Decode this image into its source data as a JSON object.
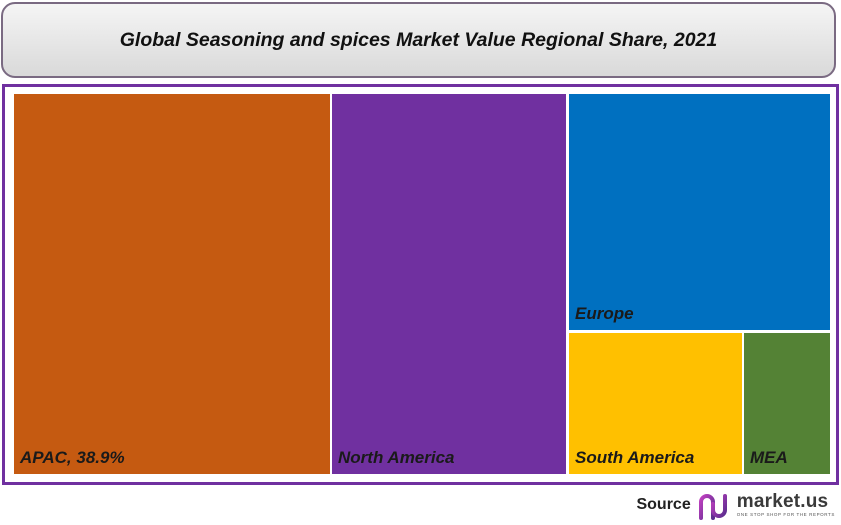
{
  "chart_data": {
    "type": "treemap",
    "title": "Global Seasoning and spices Market Value Regional Share, 2021",
    "tiles": [
      {
        "name": "APAC",
        "value_label": "38.9%",
        "color": "#c55a11"
      },
      {
        "name": "North America",
        "color": "#7030a0"
      },
      {
        "name": "Europe",
        "color": "#0070c0"
      },
      {
        "name": "South America",
        "color": "#ffc000"
      },
      {
        "name": "MEA",
        "color": "#548235"
      }
    ],
    "border_color": "#7030a0"
  },
  "footer": {
    "source_label": "Source",
    "brand_name": "market.us",
    "brand_tagline": "ONE STOP SHOP FOR THE REPORTS",
    "brand_colors": [
      "#c040c0",
      "#5b2d8e"
    ]
  }
}
